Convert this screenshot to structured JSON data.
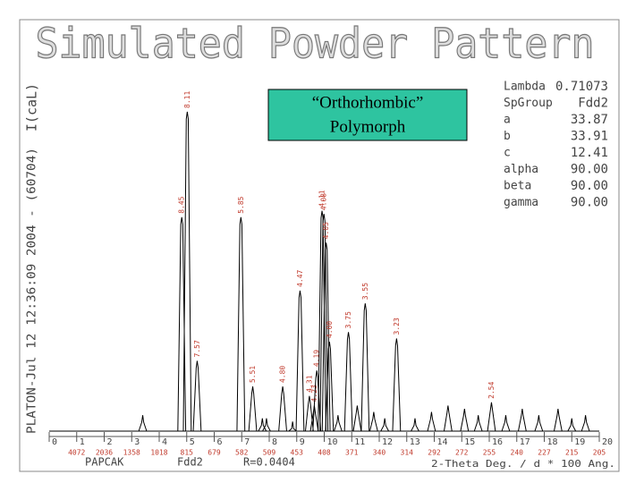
{
  "chart_data": {
    "type": "stick",
    "title": "Simulated Powder Pattern",
    "y_label": "I(caL)",
    "side_note": "PLATON-Jul 12 12:36:09 2004 - (60704)",
    "x_label": "2-Theta Deg. / d * 100 Ang.",
    "footer": [
      "PAPCAK",
      "Fdd2",
      "R=0.0404"
    ],
    "annotation": [
      "“Orthorhombic”",
      "Polymorph"
    ],
    "cell": [
      {
        "name": "Lambda",
        "value": "0.71073"
      },
      {
        "name": "SpGroup",
        "value": "Fdd2"
      },
      {
        "name": "a",
        "value": "33.87"
      },
      {
        "name": "b",
        "value": "33.91"
      },
      {
        "name": "c",
        "value": "12.41"
      },
      {
        "name": "alpha",
        "value": "90.00"
      },
      {
        "name": "beta",
        "value": "90.00"
      },
      {
        "name": "gamma",
        "value": "90.00"
      }
    ],
    "xlim": [
      0,
      20
    ],
    "ylim": [
      0,
      100
    ],
    "xticks": [
      0,
      1,
      2,
      3,
      4,
      5,
      6,
      7,
      8,
      9,
      10,
      11,
      12,
      13,
      14,
      15,
      16,
      17,
      18,
      19,
      20
    ],
    "d_labels": [
      null,
      4072,
      2036,
      1358,
      1018,
      815,
      679,
      582,
      509,
      453,
      408,
      371,
      340,
      314,
      292,
      272,
      255,
      240,
      227,
      215,
      205
    ],
    "color": "#000000",
    "label_color": "#c0392b",
    "x": [
      4.82,
      5.02,
      5.38,
      6.97,
      7.4,
      8.49,
      9.12,
      9.46,
      9.64,
      9.73,
      9.92,
      9.99,
      10.07,
      10.19,
      10.88,
      11.49,
      12.63,
      16.08,
      3.4,
      7.75,
      7.9,
      8.85,
      10.5,
      11.2,
      11.8,
      12.2,
      13.3,
      13.9,
      14.5,
      15.1,
      15.6,
      16.6,
      17.2,
      17.8,
      18.5,
      19.0,
      19.5
    ],
    "values": [
      67,
      100,
      22,
      67,
      14,
      14,
      44,
      11,
      8,
      19,
      69,
      68,
      59,
      28,
      31,
      40,
      29,
      9,
      5,
      4,
      4,
      3,
      5,
      8,
      6,
      4,
      4,
      6,
      8,
      7,
      5,
      5,
      7,
      5,
      7,
      4,
      5
    ],
    "labels": [
      "8.45",
      "8.11",
      "7.57",
      "5.85",
      "5.51",
      "4.80",
      "4.47",
      "4.31",
      "4.23",
      "4.19",
      "4.11",
      "4.08",
      "4.05",
      "4.00",
      "3.75",
      "3.55",
      "3.23",
      "2.54",
      null,
      null,
      null,
      null,
      null,
      null,
      null,
      null,
      null,
      null,
      null,
      null,
      null,
      null,
      null,
      null,
      null,
      null,
      null
    ]
  }
}
